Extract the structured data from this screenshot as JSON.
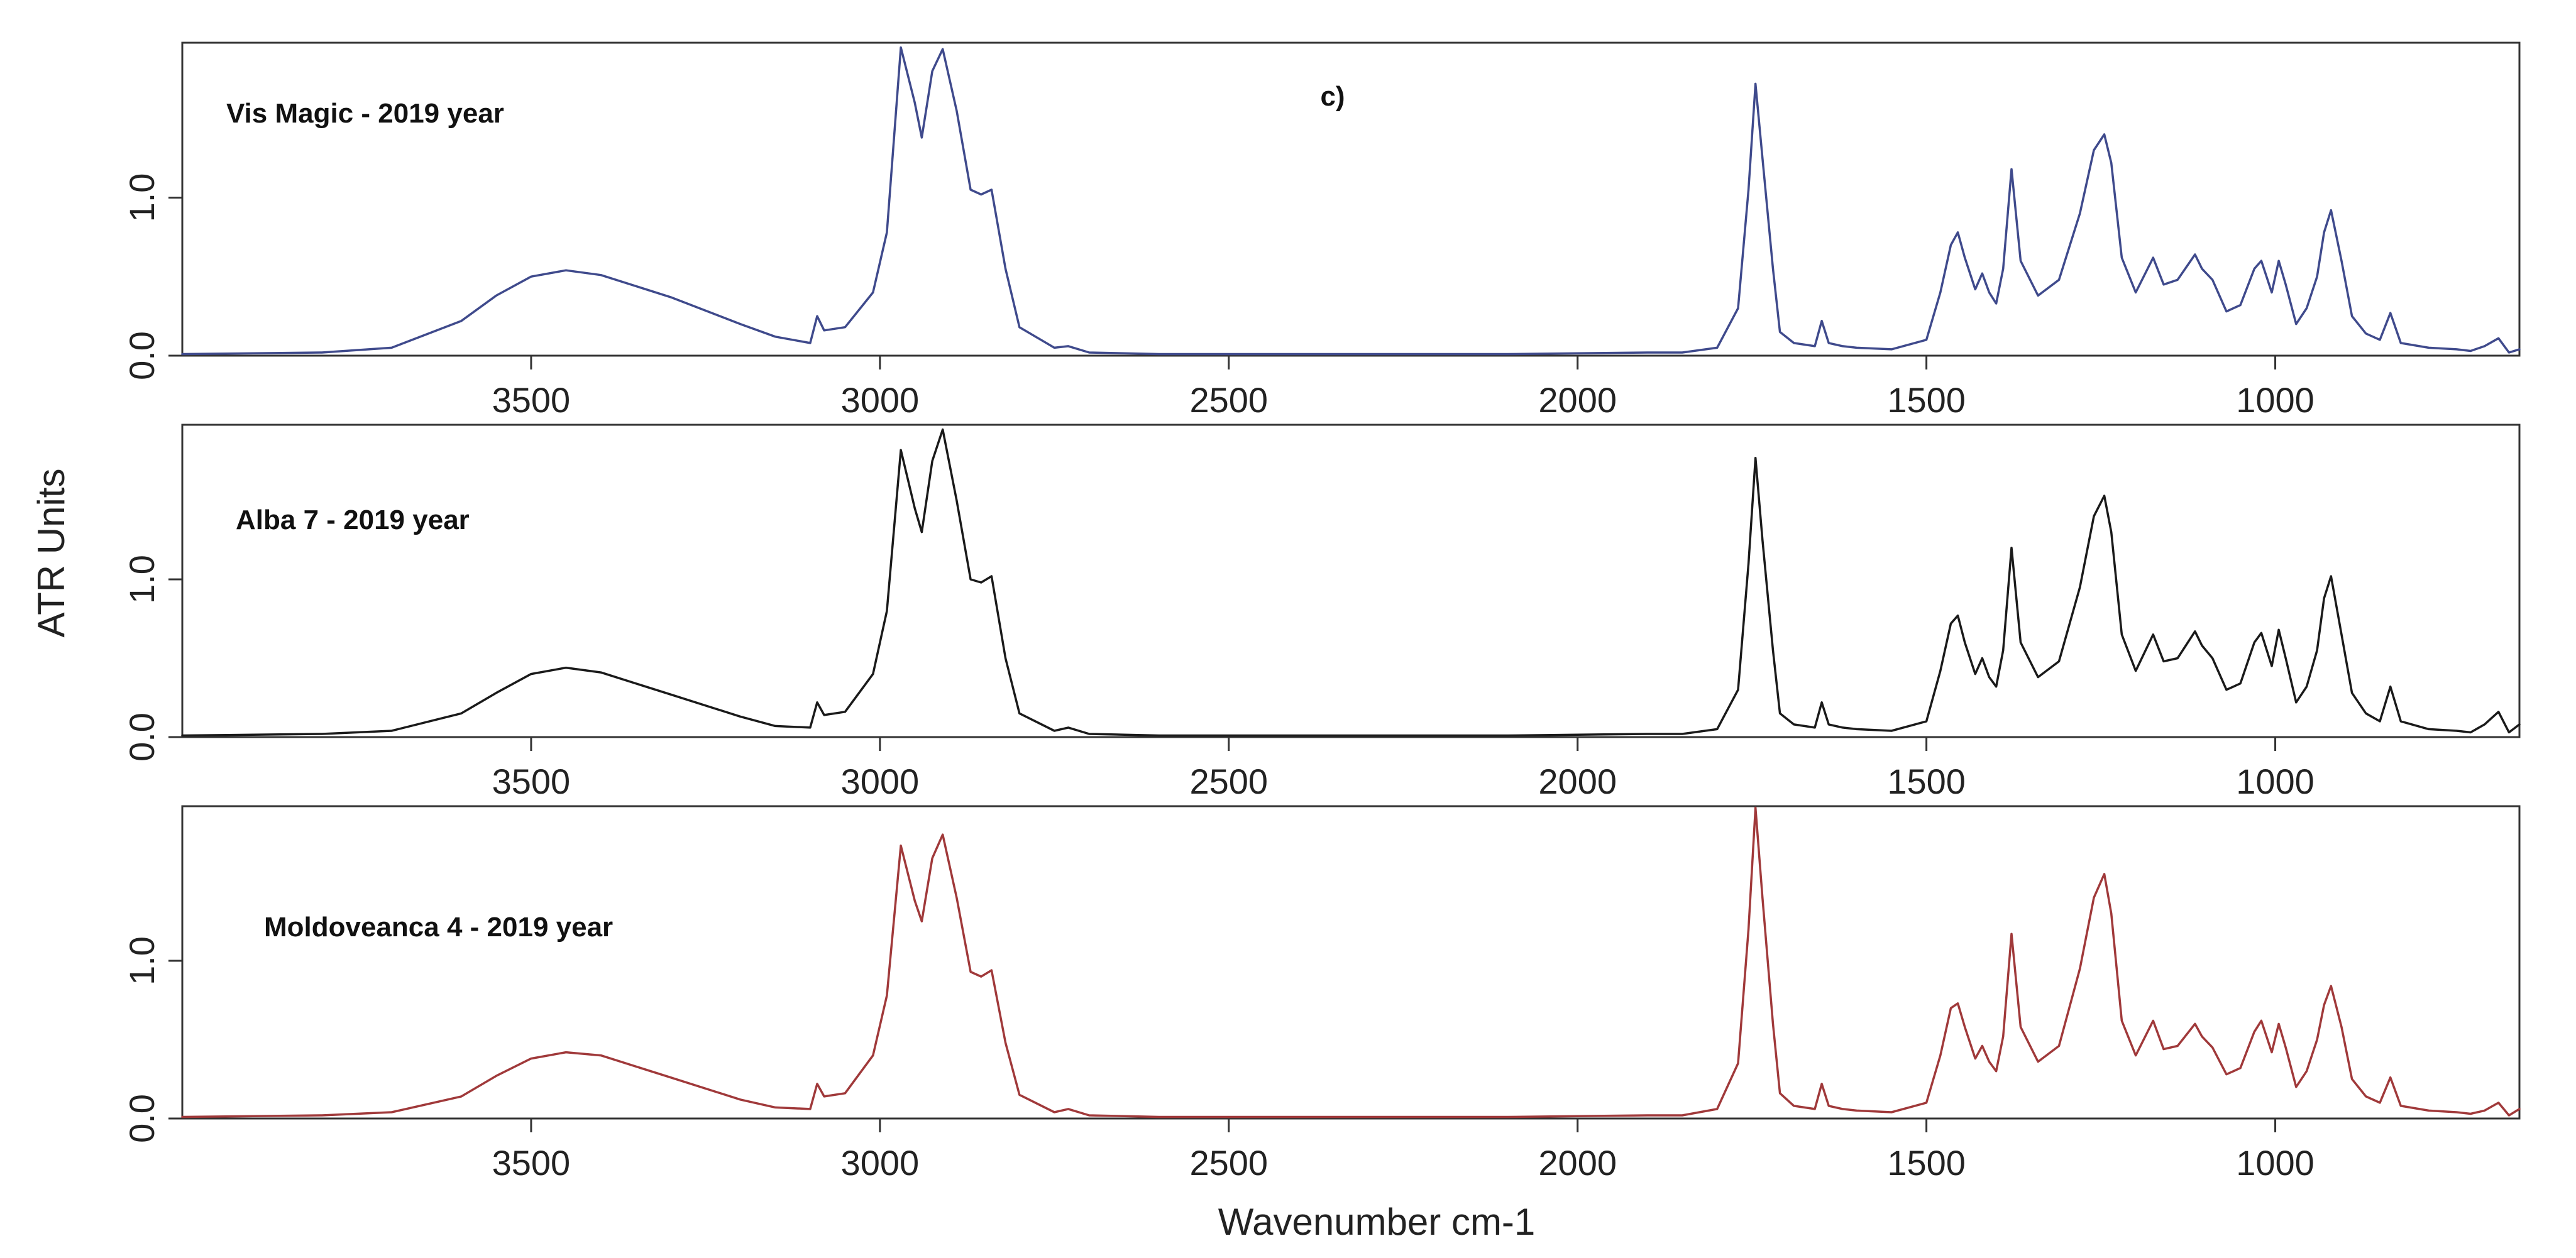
{
  "chart_data": {
    "type": "line",
    "panel_tag": "c)",
    "xlabel": "Wavenumber cm-1",
    "ylabel": "ATR Units",
    "xlim": [
      4000,
      650
    ],
    "x_reversed": true,
    "x_ticks": [
      "3500",
      "3000",
      "2500",
      "2000",
      "1500",
      "1000"
    ],
    "x_tick_values": [
      3500,
      3000,
      2500,
      2000,
      1500,
      1000
    ],
    "y_ticks": [
      "0.0",
      "1.0"
    ],
    "y_tick_values": [
      0.0,
      1.0
    ],
    "panels": [
      {
        "label": "Vis Magic - 2019 year",
        "color": "#3f4a8c",
        "ylim": [
          0,
          1.98
        ],
        "x": [
          4000,
          3800,
          3700,
          3600,
          3550,
          3500,
          3450,
          3400,
          3300,
          3200,
          3150,
          3100,
          3090,
          3080,
          3050,
          3010,
          2990,
          2970,
          2950,
          2940,
          2925,
          2910,
          2890,
          2870,
          2855,
          2840,
          2820,
          2800,
          2750,
          2730,
          2700,
          2600,
          2400,
          2100,
          1900,
          1850,
          1800,
          1770,
          1755,
          1745,
          1735,
          1720,
          1710,
          1690,
          1660,
          1650,
          1640,
          1620,
          1600,
          1550,
          1500,
          1480,
          1465,
          1455,
          1445,
          1430,
          1420,
          1410,
          1400,
          1390,
          1378,
          1365,
          1340,
          1310,
          1280,
          1260,
          1245,
          1235,
          1220,
          1200,
          1175,
          1160,
          1140,
          1115,
          1105,
          1090,
          1070,
          1050,
          1030,
          1020,
          1005,
          995,
          985,
          970,
          955,
          940,
          930,
          920,
          905,
          890,
          870,
          850,
          835,
          820,
          780,
          740,
          720,
          700,
          680,
          665,
          650
        ],
        "y": [
          0.01,
          0.02,
          0.05,
          0.22,
          0.38,
          0.5,
          0.54,
          0.51,
          0.37,
          0.2,
          0.12,
          0.08,
          0.25,
          0.16,
          0.18,
          0.4,
          0.78,
          1.95,
          1.6,
          1.38,
          1.8,
          1.94,
          1.55,
          1.05,
          1.02,
          1.05,
          0.55,
          0.18,
          0.05,
          0.06,
          0.02,
          0.01,
          0.01,
          0.01,
          0.02,
          0.02,
          0.05,
          0.3,
          1.05,
          1.72,
          1.25,
          0.55,
          0.15,
          0.08,
          0.06,
          0.22,
          0.08,
          0.06,
          0.05,
          0.04,
          0.1,
          0.4,
          0.7,
          0.78,
          0.62,
          0.42,
          0.52,
          0.4,
          0.33,
          0.55,
          1.18,
          0.6,
          0.38,
          0.48,
          0.9,
          1.3,
          1.4,
          1.22,
          0.62,
          0.4,
          0.62,
          0.45,
          0.48,
          0.64,
          0.55,
          0.48,
          0.28,
          0.32,
          0.55,
          0.6,
          0.4,
          0.6,
          0.45,
          0.2,
          0.3,
          0.5,
          0.78,
          0.92,
          0.6,
          0.25,
          0.14,
          0.1,
          0.27,
          0.08,
          0.05,
          0.04,
          0.03,
          0.06,
          0.11,
          0.02,
          0.04
        ]
      },
      {
        "label": "Alba 7 - 2019 year",
        "color": "#1a1a1a",
        "ylim": [
          0,
          1.98
        ],
        "x": [
          4000,
          3800,
          3700,
          3600,
          3550,
          3500,
          3450,
          3400,
          3300,
          3200,
          3150,
          3100,
          3090,
          3080,
          3050,
          3010,
          2990,
          2970,
          2950,
          2940,
          2925,
          2910,
          2890,
          2870,
          2855,
          2840,
          2820,
          2800,
          2750,
          2730,
          2700,
          2600,
          2400,
          2100,
          1900,
          1850,
          1800,
          1770,
          1755,
          1745,
          1735,
          1720,
          1710,
          1690,
          1660,
          1650,
          1640,
          1620,
          1600,
          1550,
          1500,
          1480,
          1465,
          1455,
          1445,
          1430,
          1420,
          1410,
          1400,
          1390,
          1378,
          1365,
          1340,
          1310,
          1280,
          1260,
          1245,
          1235,
          1220,
          1200,
          1175,
          1160,
          1140,
          1115,
          1105,
          1090,
          1070,
          1050,
          1030,
          1020,
          1005,
          995,
          985,
          970,
          955,
          940,
          930,
          920,
          905,
          890,
          870,
          850,
          835,
          820,
          780,
          740,
          720,
          700,
          680,
          665,
          650
        ],
        "y": [
          0.01,
          0.02,
          0.04,
          0.15,
          0.28,
          0.4,
          0.44,
          0.41,
          0.27,
          0.13,
          0.07,
          0.06,
          0.22,
          0.14,
          0.16,
          0.4,
          0.8,
          1.82,
          1.45,
          1.3,
          1.75,
          1.95,
          1.5,
          1.0,
          0.98,
          1.02,
          0.5,
          0.15,
          0.04,
          0.06,
          0.02,
          0.01,
          0.01,
          0.01,
          0.02,
          0.02,
          0.05,
          0.3,
          1.1,
          1.77,
          1.25,
          0.55,
          0.15,
          0.08,
          0.06,
          0.22,
          0.08,
          0.06,
          0.05,
          0.04,
          0.1,
          0.42,
          0.72,
          0.77,
          0.6,
          0.4,
          0.5,
          0.38,
          0.32,
          0.55,
          1.2,
          0.6,
          0.38,
          0.48,
          0.95,
          1.4,
          1.53,
          1.3,
          0.65,
          0.42,
          0.65,
          0.48,
          0.5,
          0.67,
          0.58,
          0.5,
          0.3,
          0.34,
          0.6,
          0.66,
          0.45,
          0.68,
          0.5,
          0.22,
          0.32,
          0.55,
          0.88,
          1.02,
          0.65,
          0.28,
          0.15,
          0.1,
          0.32,
          0.1,
          0.05,
          0.04,
          0.03,
          0.08,
          0.16,
          0.03,
          0.08
        ]
      },
      {
        "label": "Moldoveanca 4 - 2019 year",
        "color": "#a0393a",
        "ylim": [
          0,
          1.98
        ],
        "x": [
          4000,
          3800,
          3700,
          3600,
          3550,
          3500,
          3450,
          3400,
          3300,
          3200,
          3150,
          3100,
          3090,
          3080,
          3050,
          3010,
          2990,
          2970,
          2950,
          2940,
          2925,
          2910,
          2890,
          2870,
          2855,
          2840,
          2820,
          2800,
          2750,
          2730,
          2700,
          2600,
          2400,
          2100,
          1900,
          1850,
          1800,
          1770,
          1755,
          1745,
          1735,
          1720,
          1710,
          1690,
          1660,
          1650,
          1640,
          1620,
          1600,
          1550,
          1500,
          1480,
          1465,
          1455,
          1445,
          1430,
          1420,
          1410,
          1400,
          1390,
          1378,
          1365,
          1340,
          1310,
          1280,
          1260,
          1245,
          1235,
          1220,
          1200,
          1175,
          1160,
          1140,
          1115,
          1105,
          1090,
          1070,
          1050,
          1030,
          1020,
          1005,
          995,
          985,
          970,
          955,
          940,
          930,
          920,
          905,
          890,
          870,
          850,
          835,
          820,
          780,
          740,
          720,
          700,
          680,
          665,
          650
        ],
        "y": [
          0.01,
          0.02,
          0.04,
          0.14,
          0.27,
          0.38,
          0.42,
          0.4,
          0.26,
          0.12,
          0.07,
          0.06,
          0.22,
          0.14,
          0.16,
          0.4,
          0.78,
          1.73,
          1.38,
          1.25,
          1.65,
          1.8,
          1.4,
          0.93,
          0.9,
          0.94,
          0.48,
          0.15,
          0.04,
          0.06,
          0.02,
          0.01,
          0.01,
          0.01,
          0.02,
          0.02,
          0.06,
          0.35,
          1.2,
          1.97,
          1.4,
          0.6,
          0.16,
          0.08,
          0.06,
          0.22,
          0.08,
          0.06,
          0.05,
          0.04,
          0.1,
          0.4,
          0.7,
          0.73,
          0.58,
          0.38,
          0.46,
          0.36,
          0.3,
          0.52,
          1.17,
          0.58,
          0.36,
          0.46,
          0.95,
          1.4,
          1.55,
          1.3,
          0.62,
          0.4,
          0.62,
          0.44,
          0.46,
          0.6,
          0.52,
          0.45,
          0.28,
          0.32,
          0.55,
          0.62,
          0.42,
          0.6,
          0.45,
          0.2,
          0.3,
          0.5,
          0.72,
          0.84,
          0.58,
          0.25,
          0.14,
          0.1,
          0.26,
          0.08,
          0.05,
          0.04,
          0.03,
          0.05,
          0.1,
          0.02,
          0.06
        ]
      }
    ]
  }
}
